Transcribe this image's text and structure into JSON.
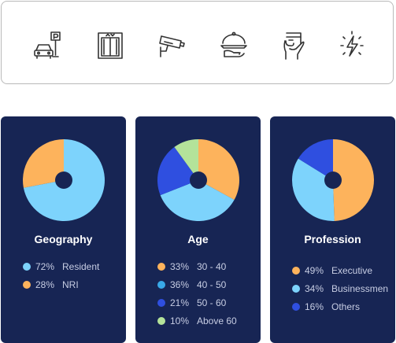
{
  "amenities": [
    {
      "icon": "parking-icon"
    },
    {
      "icon": "elevator-icon"
    },
    {
      "icon": "cctv-icon"
    },
    {
      "icon": "room-service-icon"
    },
    {
      "icon": "card-payment-icon"
    },
    {
      "icon": "power-backup-icon"
    }
  ],
  "colors": {
    "card_bg": "#172554",
    "hole": "#172554",
    "light_blue": "#7dd3fc",
    "orange": "#fdb35c",
    "mid_blue": "#39a9e8",
    "royal_blue": "#2f4fe0",
    "green": "#b4e39a"
  },
  "chart_data": [
    {
      "type": "pie",
      "title": "Geography",
      "slices": [
        {
          "label": "Resident",
          "value": 72,
          "pct_label": "72%",
          "color": "#7dd3fc"
        },
        {
          "label": "NRI",
          "value": 28,
          "pct_label": "28%",
          "color": "#fdb35c"
        }
      ]
    },
    {
      "type": "pie",
      "title": "Age",
      "slices": [
        {
          "label": "30 - 40",
          "value": 33,
          "pct_label": "33%",
          "color": "#fdb35c"
        },
        {
          "label": "40 - 50",
          "value": 36,
          "pct_label": "36%",
          "color": "#7dd3fc"
        },
        {
          "label": "50 - 60",
          "value": 21,
          "pct_label": "21%",
          "color": "#2f4fe0"
        },
        {
          "label": "Above 60",
          "value": 10,
          "pct_label": "10%",
          "color": "#b4e39a"
        }
      ],
      "legend_colors": [
        "#fdb35c",
        "#39a9e8",
        "#2f4fe0",
        "#b4e39a"
      ]
    },
    {
      "type": "pie",
      "title": "Profession",
      "slices": [
        {
          "label": "Executive",
          "value": 49,
          "pct_label": "49%",
          "color": "#fdb35c"
        },
        {
          "label": "Businessmen",
          "value": 34,
          "pct_label": "34%",
          "color": "#7dd3fc"
        },
        {
          "label": "Others",
          "value": 16,
          "pct_label": "16%",
          "color": "#2f4fe0"
        }
      ]
    }
  ]
}
